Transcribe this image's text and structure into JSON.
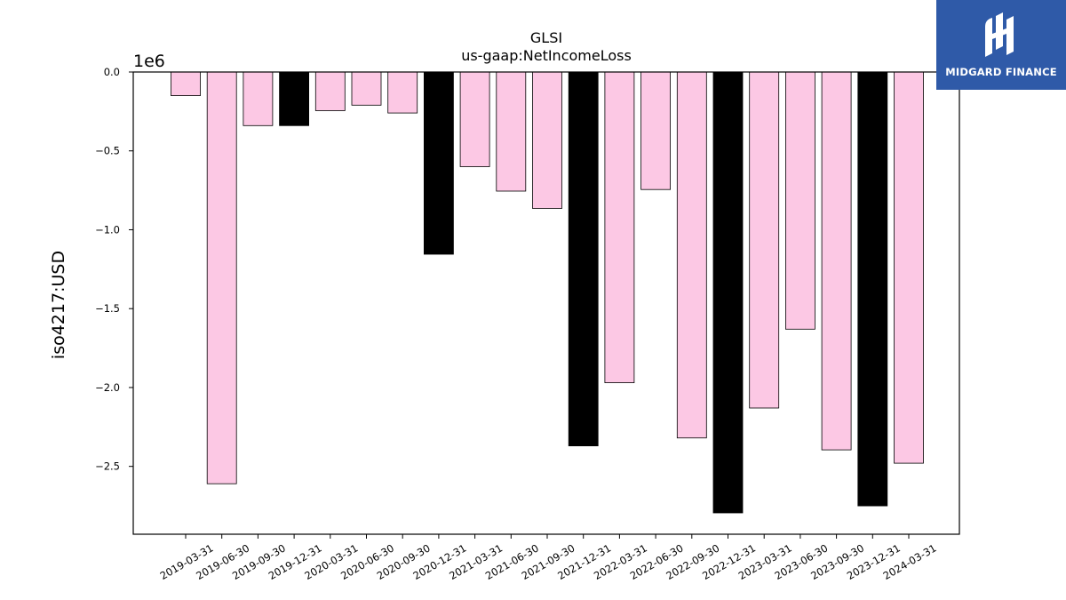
{
  "chart_data": {
    "type": "bar",
    "title": "GLSI",
    "subtitle": "us-gaap:NetIncomeLoss",
    "ylabel": "iso4217:USD",
    "xlabel": "",
    "y_scale_label": "1e6",
    "ylim": [
      -2.93,
      0.0
    ],
    "yticks": [
      0.0,
      -0.5,
      -1.0,
      -1.5,
      -2.0,
      -2.5
    ],
    "ytick_labels": [
      "0.0",
      "−0.5",
      "−1.0",
      "−1.5",
      "−2.0",
      "−2.5"
    ],
    "grid": false,
    "legend": "none",
    "categories": [
      "2019-03-31",
      "2019-06-30",
      "2019-09-30",
      "2019-12-31",
      "2020-03-31",
      "2020-06-30",
      "2020-09-30",
      "2020-12-31",
      "2021-03-31",
      "2021-06-30",
      "2021-09-30",
      "2021-12-31",
      "2022-03-31",
      "2022-06-30",
      "2022-09-30",
      "2022-12-31",
      "2023-03-31",
      "2023-06-30",
      "2023-09-30",
      "2023-12-31",
      "2024-03-31"
    ],
    "values": [
      -0.15,
      -2.61,
      -0.34,
      -0.34,
      -0.245,
      -0.21,
      -0.26,
      -1.155,
      -0.6,
      -0.755,
      -0.865,
      -2.37,
      -1.97,
      -0.745,
      -2.32,
      -2.795,
      -2.13,
      -1.63,
      -2.395,
      -2.75,
      -2.48
    ],
    "is_fiscal_year_end": [
      false,
      false,
      false,
      true,
      false,
      false,
      false,
      true,
      false,
      false,
      false,
      true,
      false,
      false,
      false,
      true,
      false,
      false,
      false,
      true,
      false
    ],
    "colors": {
      "quarter": "#fcc8e4",
      "year_end": "#000000",
      "edge": "#000000"
    }
  },
  "branding": {
    "logo_text": "MIDGARD FINANCE",
    "logo_color": "#2f5aa8"
  }
}
